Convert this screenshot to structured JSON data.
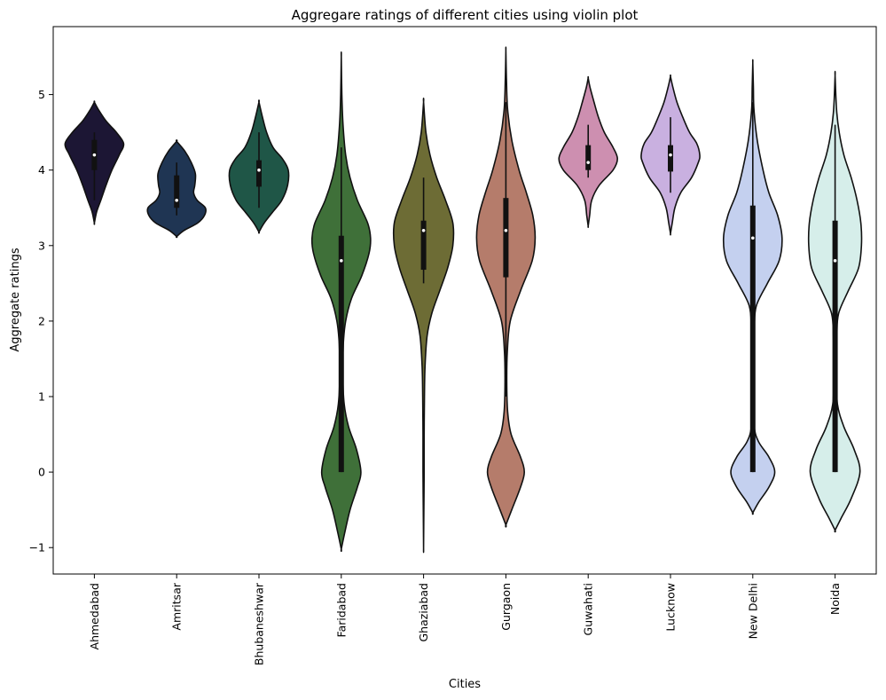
{
  "chart_data": {
    "type": "violin",
    "title": "Aggregare ratings of different cities using violin plot",
    "xlabel": "Cities",
    "ylabel": "Aggregate ratings",
    "ylim": [
      -1.35,
      5.9
    ],
    "yticks": [
      -1,
      0,
      1,
      2,
      3,
      4,
      5
    ],
    "ytick_labels": [
      "−1",
      "0",
      "1",
      "2",
      "3",
      "4",
      "5"
    ],
    "grid": false,
    "legend": "none",
    "categories": [
      "Ahmedabad",
      "Amritsar",
      "Bhubaneshwar",
      "Faridabad",
      "Ghaziabad",
      "Gurgaon",
      "Guwahati",
      "Lucknow",
      "New Delhi",
      "Noida"
    ],
    "series": [
      {
        "category": "Ahmedabad",
        "color": "#1c1634",
        "median": 4.2,
        "q1": 4.0,
        "q3": 4.4,
        "whisker_low": 3.6,
        "whisker_high": 4.5,
        "kde_min": 3.3,
        "kde_max": 4.9,
        "profile": [
          [
            3.3,
            0.0
          ],
          [
            3.45,
            0.08
          ],
          [
            3.6,
            0.22
          ],
          [
            3.8,
            0.4
          ],
          [
            4.0,
            0.6
          ],
          [
            4.2,
            0.85
          ],
          [
            4.35,
            1.0
          ],
          [
            4.5,
            0.75
          ],
          [
            4.65,
            0.4
          ],
          [
            4.8,
            0.14
          ],
          [
            4.9,
            0.0
          ]
        ]
      },
      {
        "category": "Amritsar",
        "color": "#1f3553",
        "median": 3.6,
        "q1": 3.5,
        "q3": 3.93,
        "whisker_low": 3.4,
        "whisker_high": 4.1,
        "kde_min": 3.12,
        "kde_max": 4.38,
        "profile": [
          [
            3.12,
            0.0
          ],
          [
            3.2,
            0.25
          ],
          [
            3.3,
            0.72
          ],
          [
            3.4,
            0.95
          ],
          [
            3.5,
            0.98
          ],
          [
            3.6,
            0.7
          ],
          [
            3.7,
            0.58
          ],
          [
            3.8,
            0.62
          ],
          [
            3.95,
            0.64
          ],
          [
            4.1,
            0.5
          ],
          [
            4.25,
            0.28
          ],
          [
            4.38,
            0.0
          ]
        ]
      },
      {
        "category": "Bhubaneshwar",
        "color": "#1f5647",
        "median": 4.0,
        "q1": 3.78,
        "q3": 4.13,
        "whisker_low": 3.5,
        "whisker_high": 4.5,
        "kde_min": 3.18,
        "kde_max": 4.9,
        "profile": [
          [
            3.18,
            0.0
          ],
          [
            3.3,
            0.18
          ],
          [
            3.45,
            0.48
          ],
          [
            3.6,
            0.78
          ],
          [
            3.8,
            0.98
          ],
          [
            4.0,
            1.0
          ],
          [
            4.15,
            0.8
          ],
          [
            4.3,
            0.48
          ],
          [
            4.5,
            0.26
          ],
          [
            4.7,
            0.12
          ],
          [
            4.9,
            0.0
          ]
        ]
      },
      {
        "category": "Faridabad",
        "color": "#3f7039",
        "median": 2.8,
        "q1": 0.0,
        "q3": 3.13,
        "whisker_low": 0.0,
        "whisker_high": 4.3,
        "kde_min": -1.02,
        "kde_max": 5.5,
        "profile": [
          [
            -1.02,
            0.0
          ],
          [
            -0.8,
            0.12
          ],
          [
            -0.5,
            0.3
          ],
          [
            -0.2,
            0.55
          ],
          [
            0.0,
            0.67
          ],
          [
            0.3,
            0.52
          ],
          [
            0.6,
            0.25
          ],
          [
            0.9,
            0.1
          ],
          [
            1.3,
            0.05
          ],
          [
            1.7,
            0.07
          ],
          [
            2.0,
            0.15
          ],
          [
            2.3,
            0.35
          ],
          [
            2.6,
            0.7
          ],
          [
            2.9,
            0.95
          ],
          [
            3.1,
            1.0
          ],
          [
            3.3,
            0.9
          ],
          [
            3.6,
            0.55
          ],
          [
            3.9,
            0.3
          ],
          [
            4.2,
            0.15
          ],
          [
            4.6,
            0.06
          ],
          [
            5.0,
            0.02
          ],
          [
            5.5,
            0.0
          ]
        ]
      },
      {
        "category": "Ghaziabad",
        "color": "#6d6c35",
        "median": 3.2,
        "q1": 2.68,
        "q3": 3.33,
        "whisker_low": 2.5,
        "whisker_high": 3.9,
        "kde_min": -1.0,
        "kde_max": 4.9,
        "profile": [
          [
            -1.0,
            0.0
          ],
          [
            -0.5,
            0.01
          ],
          [
            0.0,
            0.02
          ],
          [
            0.5,
            0.02
          ],
          [
            1.0,
            0.03
          ],
          [
            1.4,
            0.05
          ],
          [
            1.8,
            0.12
          ],
          [
            2.1,
            0.28
          ],
          [
            2.4,
            0.55
          ],
          [
            2.7,
            0.82
          ],
          [
            3.0,
            1.0
          ],
          [
            3.3,
            1.0
          ],
          [
            3.6,
            0.75
          ],
          [
            3.9,
            0.45
          ],
          [
            4.2,
            0.22
          ],
          [
            4.5,
            0.08
          ],
          [
            4.9,
            0.0
          ]
        ]
      },
      {
        "category": "Gurgaon",
        "color": "#b57c6b",
        "median": 3.2,
        "q1": 2.58,
        "q3": 3.63,
        "whisker_low": 1.0,
        "whisker_high": 4.9,
        "kde_min": -0.7,
        "kde_max": 5.58,
        "profile": [
          [
            -0.7,
            0.0
          ],
          [
            -0.5,
            0.2
          ],
          [
            -0.2,
            0.5
          ],
          [
            0.0,
            0.63
          ],
          [
            0.2,
            0.5
          ],
          [
            0.5,
            0.18
          ],
          [
            0.8,
            0.06
          ],
          [
            1.2,
            0.03
          ],
          [
            1.6,
            0.05
          ],
          [
            2.0,
            0.15
          ],
          [
            2.4,
            0.5
          ],
          [
            2.8,
            0.9
          ],
          [
            3.1,
            1.0
          ],
          [
            3.4,
            0.92
          ],
          [
            3.7,
            0.7
          ],
          [
            4.0,
            0.45
          ],
          [
            4.4,
            0.2
          ],
          [
            4.8,
            0.06
          ],
          [
            5.2,
            0.02
          ],
          [
            5.58,
            0.0
          ]
        ]
      },
      {
        "category": "Guwahati",
        "color": "#cd8fb0",
        "median": 4.1,
        "q1": 4.0,
        "q3": 4.33,
        "whisker_low": 3.9,
        "whisker_high": 4.6,
        "kde_min": 3.26,
        "kde_max": 5.22,
        "profile": [
          [
            3.26,
            0.0
          ],
          [
            3.4,
            0.05
          ],
          [
            3.6,
            0.12
          ],
          [
            3.8,
            0.38
          ],
          [
            4.0,
            0.85
          ],
          [
            4.15,
            1.0
          ],
          [
            4.3,
            0.85
          ],
          [
            4.5,
            0.55
          ],
          [
            4.7,
            0.35
          ],
          [
            4.9,
            0.2
          ],
          [
            5.1,
            0.06
          ],
          [
            5.22,
            0.0
          ]
        ]
      },
      {
        "category": "Lucknow",
        "color": "#c9b0e0",
        "median": 4.2,
        "q1": 3.98,
        "q3": 4.33,
        "whisker_low": 3.7,
        "whisker_high": 4.7,
        "kde_min": 3.16,
        "kde_max": 5.24,
        "profile": [
          [
            3.16,
            0.0
          ],
          [
            3.3,
            0.06
          ],
          [
            3.5,
            0.15
          ],
          [
            3.7,
            0.35
          ],
          [
            3.9,
            0.72
          ],
          [
            4.1,
            0.95
          ],
          [
            4.2,
            1.0
          ],
          [
            4.35,
            0.9
          ],
          [
            4.5,
            0.65
          ],
          [
            4.7,
            0.42
          ],
          [
            4.9,
            0.22
          ],
          [
            5.1,
            0.08
          ],
          [
            5.24,
            0.0
          ]
        ]
      },
      {
        "category": "New Delhi",
        "color": "#c4d0ef",
        "median": 3.1,
        "q1": 0.0,
        "q3": 3.53,
        "whisker_low": 0.0,
        "whisker_high": 4.9,
        "kde_min": -0.54,
        "kde_max": 5.42,
        "profile": [
          [
            -0.54,
            0.0
          ],
          [
            -0.4,
            0.2
          ],
          [
            -0.2,
            0.55
          ],
          [
            0.0,
            0.75
          ],
          [
            0.2,
            0.55
          ],
          [
            0.4,
            0.2
          ],
          [
            0.6,
            0.05
          ],
          [
            1.0,
            0.02
          ],
          [
            1.5,
            0.02
          ],
          [
            1.9,
            0.05
          ],
          [
            2.2,
            0.12
          ],
          [
            2.5,
            0.5
          ],
          [
            2.8,
            0.9
          ],
          [
            3.1,
            1.0
          ],
          [
            3.4,
            0.85
          ],
          [
            3.7,
            0.55
          ],
          [
            4.0,
            0.35
          ],
          [
            4.4,
            0.15
          ],
          [
            4.8,
            0.04
          ],
          [
            5.1,
            0.02
          ],
          [
            5.42,
            0.0
          ]
        ]
      },
      {
        "category": "Noida",
        "color": "#d6eeea",
        "median": 2.8,
        "q1": 0.0,
        "q3": 3.33,
        "whisker_low": 0.0,
        "whisker_high": 4.6,
        "kde_min": -0.77,
        "kde_max": 5.25,
        "profile": [
          [
            -0.77,
            0.0
          ],
          [
            -0.6,
            0.22
          ],
          [
            -0.35,
            0.55
          ],
          [
            0.0,
            0.85
          ],
          [
            0.3,
            0.65
          ],
          [
            0.6,
            0.3
          ],
          [
            0.9,
            0.08
          ],
          [
            1.3,
            0.05
          ],
          [
            1.8,
            0.06
          ],
          [
            2.1,
            0.12
          ],
          [
            2.4,
            0.45
          ],
          [
            2.7,
            0.8
          ],
          [
            3.0,
            0.9
          ],
          [
            3.3,
            0.88
          ],
          [
            3.6,
            0.75
          ],
          [
            3.9,
            0.55
          ],
          [
            4.2,
            0.3
          ],
          [
            4.5,
            0.14
          ],
          [
            4.8,
            0.05
          ],
          [
            5.25,
            0.0
          ]
        ]
      }
    ]
  }
}
